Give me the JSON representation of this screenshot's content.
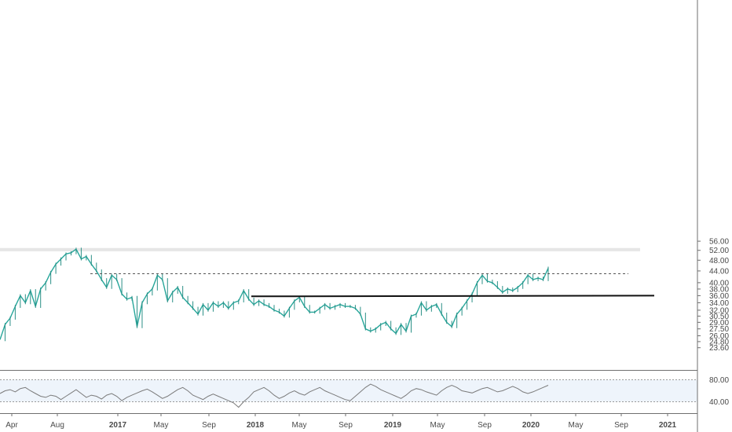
{
  "chart_data": [
    {
      "type": "line",
      "title": "",
      "xlabel": "",
      "ylabel": "",
      "scale": "log",
      "ylim": [
        23.6,
        57.5
      ],
      "y_ticks": [
        "56.00",
        "52.00",
        "48.00",
        "44.00",
        "40.00",
        "38.00",
        "36.00",
        "34.00",
        "32.00",
        "30.50",
        "29.00",
        "27.50",
        "26.00",
        "24.80",
        "23.60"
      ],
      "x_ticks": [
        "Apr",
        "Aug",
        "2017",
        "May",
        "Sep",
        "2018",
        "May",
        "Sep",
        "2019",
        "May",
        "Sep",
        "2020",
        "May",
        "Sep",
        "2021"
      ],
      "series": [
        {
          "values": [
            25.2,
            28.5,
            30.0,
            33.0,
            36.0,
            34.0,
            37.5,
            33.0,
            38.0,
            40.0,
            43.5,
            46.5,
            48.5,
            50.5,
            51.0,
            52.5,
            48.5,
            49.5,
            46.5,
            44.0,
            41.0,
            38.5,
            42.5,
            41.0,
            36.5,
            35.0,
            35.5,
            28.0,
            34.0,
            36.5,
            38.0,
            42.5,
            41.0,
            34.5,
            37.0,
            38.5,
            35.5,
            34.0,
            32.5,
            31.0,
            33.5,
            32.0,
            34.0,
            33.0,
            34.0,
            32.5,
            34.0,
            34.5,
            37.5,
            35.0,
            33.5,
            34.5,
            33.5,
            33.0,
            32.0,
            31.5,
            30.5,
            32.5,
            34.5,
            35.5,
            33.0,
            31.5,
            31.5,
            32.5,
            33.5,
            32.5,
            33.0,
            33.5,
            33.0,
            33.0,
            32.5,
            31.0,
            27.5,
            27.0,
            27.5,
            28.5,
            29.0,
            27.5,
            26.5,
            28.5,
            27.0,
            30.5,
            31.0,
            34.0,
            32.0,
            33.0,
            33.5,
            31.0,
            29.0,
            28.0,
            31.0,
            32.5,
            34.5,
            36.5,
            40.0,
            42.5,
            40.5,
            40.0,
            38.5,
            37.0,
            38.0,
            37.5,
            38.5,
            40.0,
            42.5,
            41.0,
            41.5,
            41.0,
            45.0
          ]
        }
      ],
      "annotations": [
        {
          "label": "resistance zone",
          "y_low": 51.6,
          "y_high": 53.0
        },
        {
          "label": "dashed horizontal line",
          "y": 43.0
        },
        {
          "label": "rising support line",
          "y_start": 35.8,
          "y_end": 36.0
        }
      ]
    },
    {
      "type": "line",
      "ylim": [
        25,
        95
      ],
      "y_ticks": [
        "80.00",
        "40.00"
      ],
      "band": [
        40,
        80
      ],
      "series": [
        {
          "values": [
            55,
            60,
            62,
            58,
            64,
            66,
            60,
            55,
            50,
            48,
            52,
            50,
            44,
            50,
            56,
            62,
            55,
            48,
            52,
            50,
            45,
            52,
            55,
            50,
            42,
            48,
            52,
            56,
            60,
            63,
            58,
            52,
            46,
            50,
            56,
            62,
            66,
            60,
            52,
            48,
            44,
            50,
            54,
            50,
            46,
            42,
            38,
            30,
            40,
            48,
            58,
            62,
            66,
            60,
            52,
            46,
            50,
            56,
            60,
            55,
            52,
            58,
            62,
            66,
            60,
            56,
            52,
            48,
            44,
            42,
            50,
            58,
            66,
            72,
            68,
            62,
            58,
            54,
            50,
            46,
            52,
            60,
            64,
            62,
            58,
            55,
            52,
            60,
            66,
            70,
            66,
            60,
            58,
            56,
            60,
            64,
            66,
            62,
            58,
            60,
            64,
            68,
            64,
            58,
            55,
            58,
            62,
            66,
            70
          ]
        }
      ]
    }
  ]
}
